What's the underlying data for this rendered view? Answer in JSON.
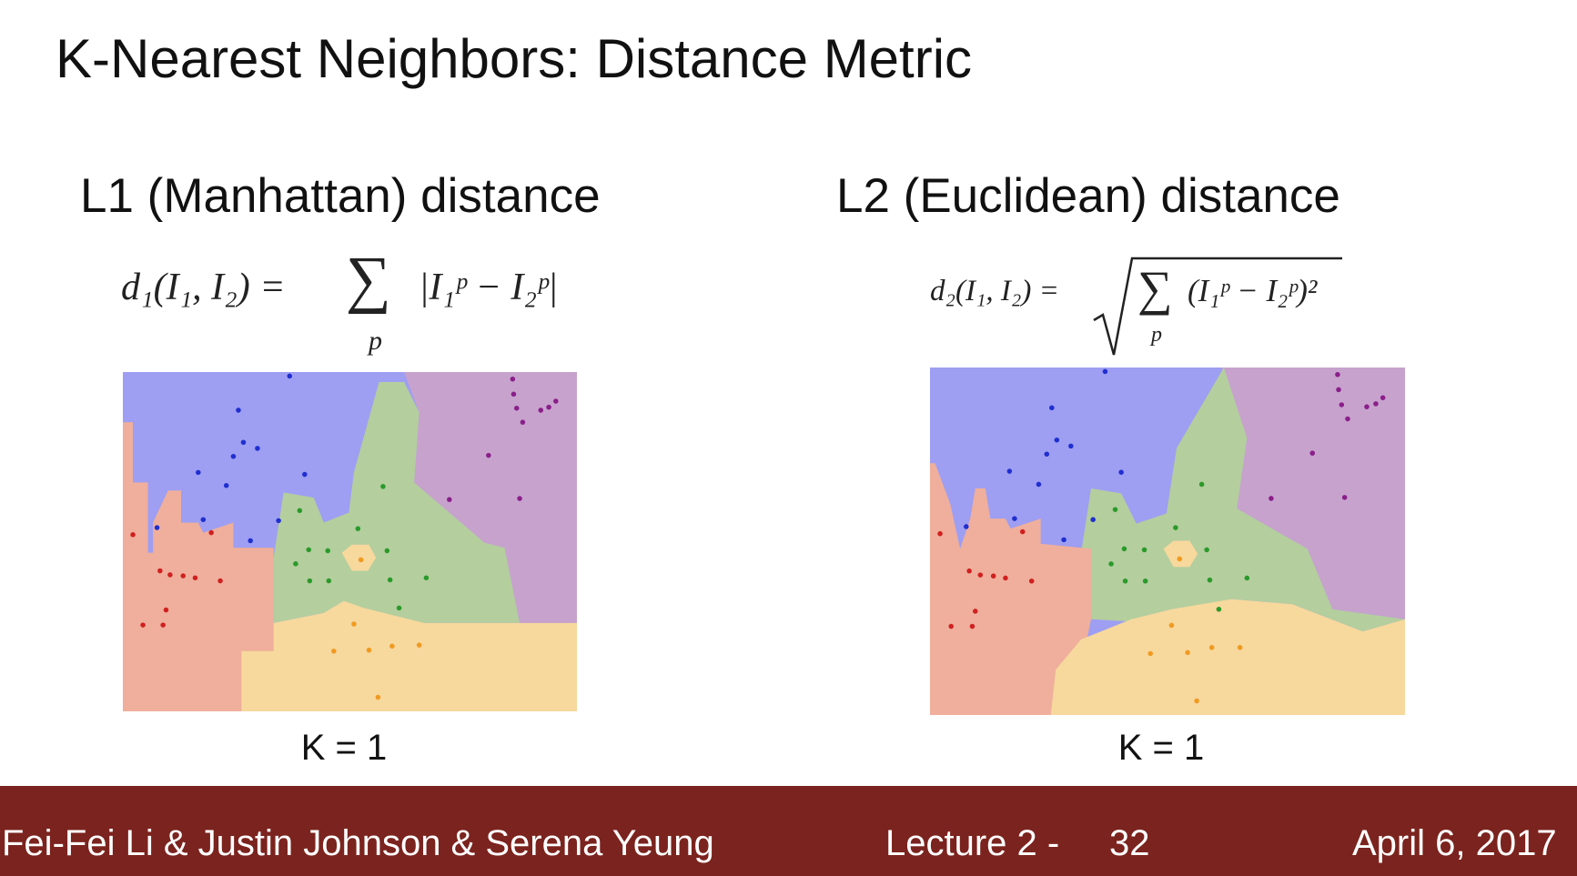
{
  "title": "K-Nearest Neighbors: Distance Metric",
  "sections": [
    {
      "heading": "L1 (Manhattan) distance",
      "formula": {
        "lhs": "d₁(I₁, I₂) =",
        "operator": "∑",
        "index": "p",
        "body": "|I₁ᵖ − I₂ᵖ|"
      },
      "caption": "K = 1"
    },
    {
      "heading": "L2 (Euclidean) distance",
      "formula": {
        "lhs": "d₂(I₁, I₂) =",
        "operator": "∑",
        "index": "p",
        "body": "(I₁ᵖ − I₂ᵖ)²"
      },
      "caption": "K = 1"
    }
  ],
  "footer": {
    "authors": "Fei-Fei Li & Justin Johnson & Serena Yeung",
    "lecture": "Lecture 2 -",
    "page": "32",
    "date": "April 6, 2017"
  }
}
